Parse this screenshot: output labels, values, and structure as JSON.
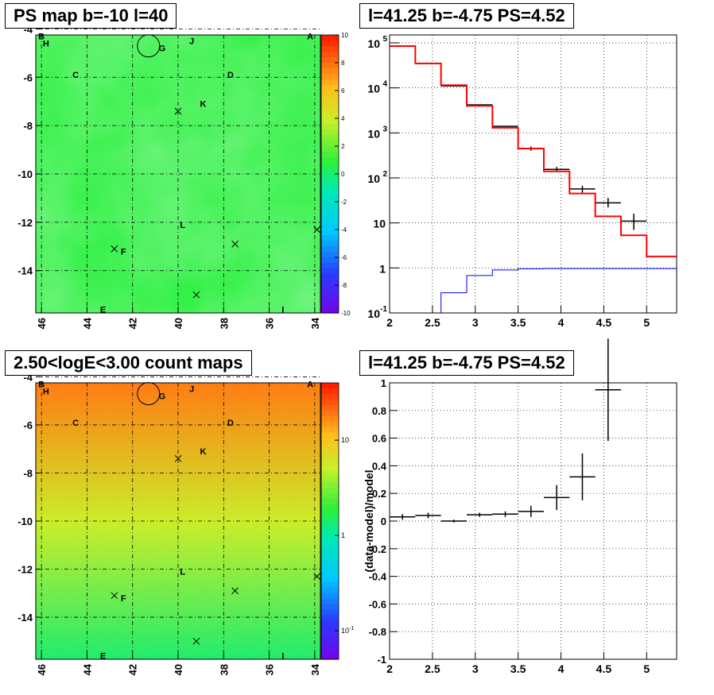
{
  "panels": {
    "ps_map_title": "PS map b=-10 l=40",
    "spectrum_title": "l=41.25 b=-4.75 PS=4.52",
    "count_map_title": "2.50<logE<3.00 count maps",
    "residual_title": "l=41.25 b=-4.75 PS=4.52"
  },
  "colors": {
    "data": "#000000",
    "model": "#ff0000",
    "background_model": "#0000ff",
    "grid": "#000000"
  },
  "chart_data": [
    {
      "type": "heatmap",
      "title": "PS map b=-10 l=40",
      "xlim": [
        46.25,
        33.75
      ],
      "ylim": [
        -15.75,
        -4.25
      ],
      "x_ticks": [
        "46",
        "44",
        "42",
        "40",
        "38",
        "36",
        "34"
      ],
      "y_ticks": [
        "-4",
        "-6",
        "-8",
        "-10",
        "-12",
        "-14"
      ],
      "colorbar": {
        "range": [
          -10,
          10
        ],
        "ticks": [
          "10",
          "8",
          "6",
          "4",
          "2",
          "0",
          "-2",
          "-4",
          "-6",
          "-8",
          "-10"
        ]
      },
      "typical_value": 1,
      "source_labels": [
        {
          "text": "A",
          "l": 34.2,
          "b": -4.3
        },
        {
          "text": "B",
          "l": 46.0,
          "b": -4.3
        },
        {
          "text": "H",
          "l": 45.8,
          "b": -4.6
        },
        {
          "text": "G",
          "l": 40.7,
          "b": -4.8
        },
        {
          "text": "J",
          "l": 39.4,
          "b": -4.5
        },
        {
          "text": "C",
          "l": 44.5,
          "b": -5.9
        },
        {
          "text": "D",
          "l": 37.7,
          "b": -5.9
        },
        {
          "text": "K",
          "l": 38.9,
          "b": -7.1
        },
        {
          "text": "L",
          "l": 39.8,
          "b": -12.1
        },
        {
          "text": "F",
          "l": 42.4,
          "b": -13.2
        },
        {
          "text": "E",
          "l": 43.3,
          "b": -15.6
        },
        {
          "text": "I",
          "l": 35.4,
          "b": -15.6
        }
      ],
      "cross_markers": [
        {
          "l": 40.0,
          "b": -7.4
        },
        {
          "l": 42.8,
          "b": -13.1
        },
        {
          "l": 37.5,
          "b": -12.9
        },
        {
          "l": 39.2,
          "b": -15.0
        },
        {
          "l": 33.9,
          "b": -12.3
        }
      ],
      "circle": {
        "l": 41.3,
        "b": -4.7
      }
    },
    {
      "type": "line",
      "title": "l=41.25 b=-4.75 PS=4.52",
      "yscale": "log",
      "xlim": [
        2,
        5.35
      ],
      "ylim": [
        0.1,
        150000
      ],
      "x_ticks": [
        "2",
        "2.5",
        "3",
        "3.5",
        "4",
        "4.5",
        "5"
      ],
      "y_ticks": [
        {
          "base": "10",
          "exp": "-1",
          "value": 0.1
        },
        {
          "base": "1",
          "exp": "",
          "value": 1
        },
        {
          "base": "10",
          "exp": "",
          "value": 10
        },
        {
          "base": "10",
          "exp": "2",
          "value": 100
        },
        {
          "base": "10",
          "exp": "3",
          "value": 1000
        },
        {
          "base": "10",
          "exp": "4",
          "value": 10000
        },
        {
          "base": "10",
          "exp": "5",
          "value": 100000
        }
      ],
      "bin_edges": [
        2.0,
        2.3,
        2.6,
        2.9,
        3.2,
        3.5,
        3.8,
        4.1,
        4.4,
        4.7,
        5.0,
        5.35
      ],
      "series": [
        {
          "name": "data",
          "x": [
            2.15,
            2.45,
            2.75,
            3.05,
            3.35,
            3.65,
            3.95,
            4.25,
            4.55,
            4.85
          ],
          "y": [
            85000,
            35000,
            11000,
            4200,
            1400,
            450,
            155,
            57,
            28,
            11
          ],
          "yerr_low": [
            0,
            0,
            0,
            0,
            0,
            50,
            20,
            10,
            6,
            4
          ],
          "yerr_high": [
            0,
            0,
            0,
            0,
            0,
            50,
            20,
            10,
            8,
            5
          ]
        },
        {
          "name": "model",
          "values": [
            85000,
            35000,
            11500,
            4000,
            1300,
            450,
            140,
            45,
            14,
            5.3,
            1.8
          ]
        },
        {
          "name": "background model",
          "values": [
            0.1,
            0.1,
            0.28,
            0.68,
            0.9,
            0.96,
            0.97,
            0.97,
            0.97,
            0.97,
            0.97
          ]
        }
      ]
    },
    {
      "type": "heatmap",
      "title": "2.50<logE<3.00 count maps",
      "xlim": [
        46.25,
        33.75
      ],
      "ylim": [
        -15.75,
        -4.25
      ],
      "x_ticks": [
        "46",
        "44",
        "42",
        "40",
        "38",
        "36",
        "34"
      ],
      "y_ticks": [
        "-4",
        "-6",
        "-8",
        "-10",
        "-12",
        "-14"
      ],
      "colorbar": {
        "scale": "log",
        "range": [
          0.05,
          40
        ],
        "ticks": [
          {
            "text": "10",
            "value": 10
          },
          {
            "text": "1",
            "value": 1
          },
          {
            "text": "10",
            "exp": "-1",
            "value": 0.1
          }
        ]
      },
      "gradient": {
        "top_value": 20,
        "bottom_value": 1.5
      },
      "source_labels": [
        {
          "text": "A",
          "l": 34.2,
          "b": -4.3
        },
        {
          "text": "B",
          "l": 46.0,
          "b": -4.3
        },
        {
          "text": "H",
          "l": 45.8,
          "b": -4.6
        },
        {
          "text": "G",
          "l": 40.7,
          "b": -4.8
        },
        {
          "text": "J",
          "l": 39.4,
          "b": -4.5
        },
        {
          "text": "C",
          "l": 44.5,
          "b": -5.9
        },
        {
          "text": "D",
          "l": 37.7,
          "b": -5.9
        },
        {
          "text": "K",
          "l": 38.9,
          "b": -7.1
        },
        {
          "text": "L",
          "l": 39.8,
          "b": -12.1
        },
        {
          "text": "F",
          "l": 42.4,
          "b": -13.2
        },
        {
          "text": "E",
          "l": 43.3,
          "b": -15.6
        },
        {
          "text": "I",
          "l": 35.4,
          "b": -15.6
        }
      ],
      "cross_markers": [
        {
          "l": 40.0,
          "b": -7.4
        },
        {
          "l": 42.8,
          "b": -13.1
        },
        {
          "l": 37.5,
          "b": -12.9
        },
        {
          "l": 39.2,
          "b": -15.0
        },
        {
          "l": 33.9,
          "b": -12.3
        }
      ],
      "circle": {
        "l": 41.3,
        "b": -4.7
      }
    },
    {
      "type": "scatter",
      "title": "l=41.25 b=-4.75 PS=4.52",
      "ylabel": "(data-model)/model",
      "xlim": [
        2,
        5.35
      ],
      "ylim": [
        -1,
        1
      ],
      "x_ticks": [
        "2",
        "2.5",
        "3",
        "3.5",
        "4",
        "4.5",
        "5"
      ],
      "y_ticks": [
        "1",
        "0.8",
        "0.6",
        "0.4",
        "0.2",
        "0",
        "-0.2",
        "-0.4",
        "-0.6",
        "-0.8",
        "-1"
      ],
      "points": {
        "x": [
          2.15,
          2.45,
          2.75,
          3.05,
          3.35,
          3.65,
          3.95,
          4.25,
          4.55
        ],
        "y": [
          0.03,
          0.04,
          0.0,
          0.045,
          0.05,
          0.07,
          0.17,
          0.32,
          0.95
        ],
        "yerr": [
          0.02,
          0.02,
          0.01,
          0.015,
          0.02,
          0.04,
          0.09,
          0.17,
          0.37
        ]
      }
    }
  ]
}
